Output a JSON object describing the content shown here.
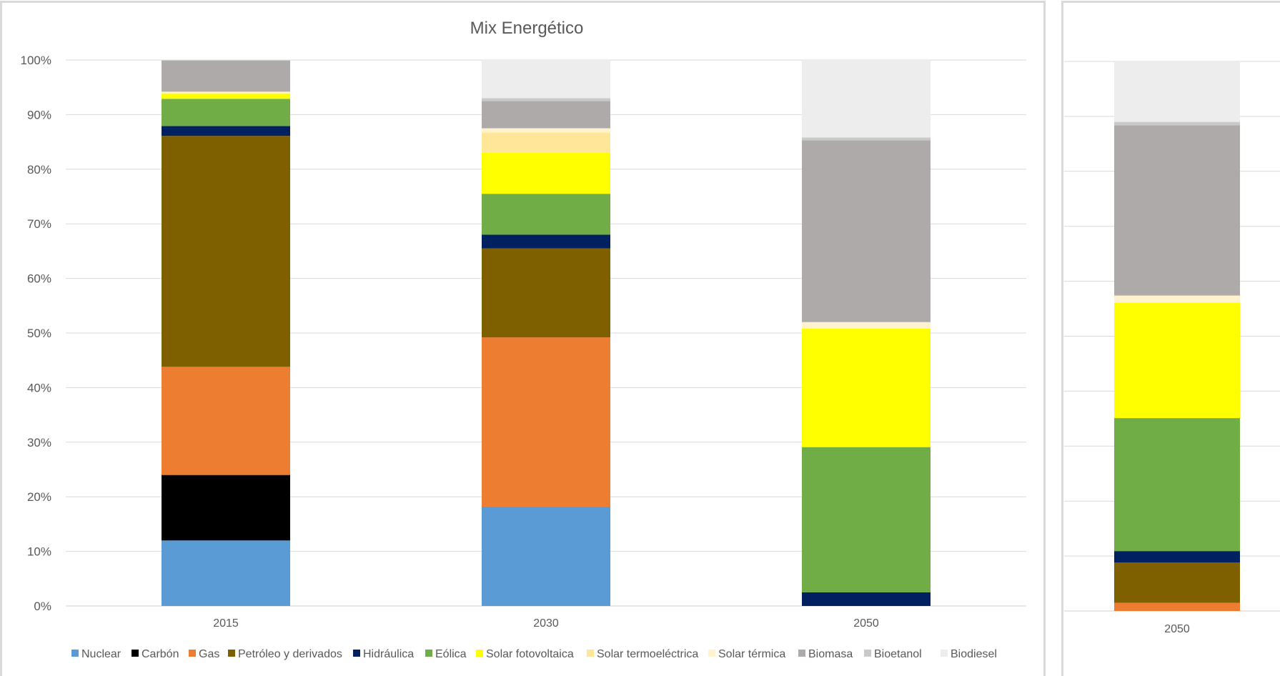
{
  "chart_data": [
    {
      "type": "bar",
      "stacked": true,
      "title": "Mix Energético",
      "xlabel": "",
      "ylabel": "",
      "ylim": [
        0,
        100
      ],
      "y_tick_labels": [
        "0%",
        "10%",
        "20%",
        "30%",
        "40%",
        "50%",
        "60%",
        "70%",
        "80%",
        "90%",
        "100%"
      ],
      "grid": true,
      "legend_position": "bottom",
      "categories": [
        "2015",
        "2030",
        "2050"
      ],
      "series": [
        {
          "name": "Nuclear",
          "color": "#5b9bd5",
          "values": [
            12.0,
            18.2,
            0.0
          ]
        },
        {
          "name": "Carbón",
          "color": "#000000",
          "values": [
            12.0,
            0.0,
            0.0
          ]
        },
        {
          "name": "Gas",
          "color": "#ed7d31",
          "values": [
            19.8,
            31.0,
            0.0
          ]
        },
        {
          "name": "Petróleo y derivados",
          "color": "#7f6000",
          "values": [
            42.3,
            16.3,
            0.0
          ]
        },
        {
          "name": "Hidráulica",
          "color": "#002060",
          "values": [
            1.8,
            2.5,
            2.5
          ]
        },
        {
          "name": "Eólica",
          "color": "#70ad47",
          "values": [
            5.0,
            7.5,
            26.6
          ]
        },
        {
          "name": "Solar fotovoltaica",
          "color": "#ffff00",
          "values": [
            1.0,
            7.5,
            21.7
          ]
        },
        {
          "name": "Solar termoeléctrica",
          "color": "#ffe699",
          "values": [
            0.0,
            3.7,
            0.0
          ]
        },
        {
          "name": "Solar térmica",
          "color": "#fff2cc",
          "values": [
            0.3,
            0.8,
            1.2
          ]
        },
        {
          "name": "Biomasa",
          "color": "#aeaaaa",
          "values": [
            5.7,
            5.0,
            33.3
          ]
        },
        {
          "name": "Bioetanol",
          "color": "#c9c9c9",
          "values": [
            0.1,
            0.5,
            0.5
          ]
        },
        {
          "name": "Biodiesel",
          "color": "#ededed",
          "values": [
            0.0,
            7.0,
            14.2
          ]
        }
      ]
    },
    {
      "type": "bar",
      "stacked": true,
      "title": "",
      "ylim": [
        0,
        100
      ],
      "grid": true,
      "categories": [
        "2050"
      ],
      "series": [
        {
          "name": "Nuclear",
          "color": "#5b9bd5",
          "values": [
            0.0
          ]
        },
        {
          "name": "Carbón",
          "color": "#000000",
          "values": [
            0.0
          ]
        },
        {
          "name": "Gas",
          "color": "#ed7d31",
          "values": [
            1.5
          ]
        },
        {
          "name": "Petróleo y derivados",
          "color": "#7f6000",
          "values": [
            7.3
          ]
        },
        {
          "name": "Hidráulica",
          "color": "#002060",
          "values": [
            2.1
          ]
        },
        {
          "name": "Eólica",
          "color": "#70ad47",
          "values": [
            24.2
          ]
        },
        {
          "name": "Solar fotovoltaica",
          "color": "#ffff00",
          "values": [
            21.0
          ]
        },
        {
          "name": "Solar termoeléctrica",
          "color": "#ffe699",
          "values": [
            0.0
          ]
        },
        {
          "name": "Solar térmica",
          "color": "#fff2cc",
          "values": [
            1.3
          ]
        },
        {
          "name": "Biomasa",
          "color": "#aeaaaa",
          "values": [
            31.0
          ]
        },
        {
          "name": "Bioetanol",
          "color": "#c9c9c9",
          "values": [
            0.6
          ]
        },
        {
          "name": "Biodiesel",
          "color": "#ededed",
          "values": [
            11.0
          ]
        }
      ]
    }
  ]
}
